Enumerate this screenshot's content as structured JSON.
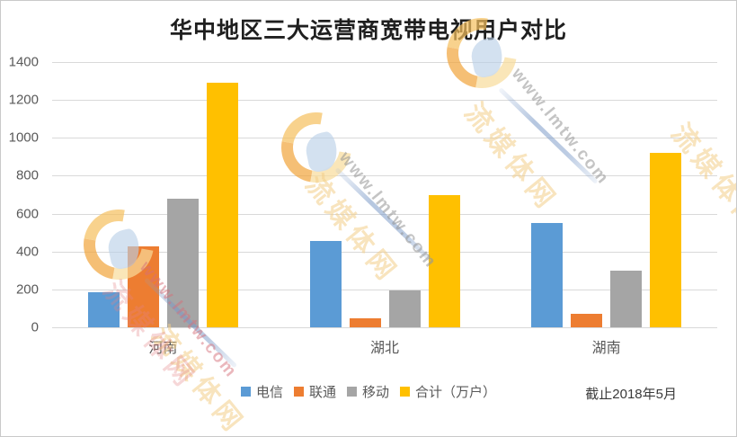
{
  "title": "华中地区三大运营商宽带电视用户对比",
  "footnote": "截止2018年5月",
  "watermark": {
    "url_text": "www.lmtw.com",
    "cn_text": "流媒体网"
  },
  "chart_data": {
    "type": "bar",
    "title": "华中地区三大运营商宽带电视用户对比",
    "categories": [
      "河南",
      "湖北",
      "湖南"
    ],
    "series": [
      {
        "name": "电信",
        "color": "#5B9BD5",
        "values": [
          185,
          455,
          550
        ]
      },
      {
        "name": "联通",
        "color": "#ED7D31",
        "values": [
          425,
          48,
          70
        ]
      },
      {
        "name": "移动",
        "color": "#A5A5A5",
        "values": [
          680,
          195,
          300
        ]
      },
      {
        "name": "合计（万户）",
        "color": "#FFC000",
        "values": [
          1290,
          698,
          920
        ]
      }
    ],
    "xlabel": "",
    "ylabel": "",
    "ylim": [
      0,
      1400
    ],
    "yticks": [
      0,
      200,
      400,
      600,
      800,
      1000,
      1200,
      1400
    ],
    "grid": true,
    "legend_position": "bottom",
    "annotation": "截止2018年5月"
  }
}
